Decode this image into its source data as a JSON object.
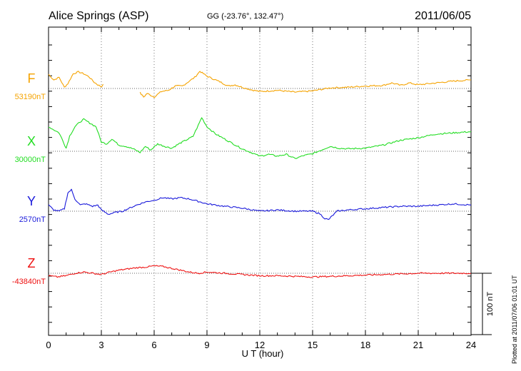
{
  "chart_data": {
    "type": "line",
    "title": "Alice Springs (ASP)",
    "coordinates": "GG (-23.76°, 132.47°)",
    "date": "2011/06/05",
    "xlabel": "U T (hour)",
    "xlim": [
      0,
      24
    ],
    "xticks": [
      0,
      3,
      6,
      9,
      12,
      15,
      18,
      21,
      24
    ],
    "scale_bar_nT": 100,
    "scale_bar_label": "100 nT",
    "plotted_note": "Plotted at 2011/07/06 01:01  UT",
    "series": [
      {
        "name": "F",
        "baseline_label": "53190nT",
        "color": "#f5a300",
        "segments": [
          {
            "x": [
              0,
              0.3,
              0.6,
              0.9,
              1.1,
              1.4,
              1.7,
              2.0,
              2.3,
              2.6,
              2.8,
              3.0,
              3.1
            ],
            "y": [
              23,
              14,
              18,
              2,
              8,
              24,
              27,
              24,
              19,
              10,
              6,
              3,
              7
            ]
          },
          {
            "x": [
              5.2,
              5.4,
              5.6,
              6.0,
              6.4,
              6.8,
              7.2,
              7.6,
              8.0,
              8.3,
              8.6,
              8.8,
              9.0,
              9.4,
              9.8,
              10.2,
              10.6,
              11.0,
              11.5,
              12.0,
              13.0,
              14.0,
              15.0,
              16.0,
              17.0,
              18.0,
              19.0,
              19.5,
              20.0,
              20.5,
              21.0,
              22.0,
              23.0,
              24.0
            ],
            "y": [
              -7,
              -14,
              -8,
              -14,
              -5,
              -3,
              4,
              4,
              12,
              18,
              28,
              24,
              20,
              15,
              10,
              4,
              6,
              2,
              -2,
              -5,
              -3,
              -6,
              -4,
              1,
              2,
              4,
              5,
              9,
              5,
              9,
              6,
              9,
              12,
              14
            ]
          }
        ]
      },
      {
        "name": "X",
        "baseline_label": "30000nT",
        "color": "#22dd22",
        "segments": [
          {
            "x": [
              0,
              0.3,
              0.6,
              0.8,
              1.0,
              1.2,
              1.5,
              1.8,
              2.0,
              2.4,
              2.7,
              3.0,
              3.3,
              3.6,
              4.0,
              4.4,
              4.8,
              5.2,
              5.5,
              5.8,
              6.2,
              6.6,
              7.0,
              7.4,
              7.8,
              8.2,
              8.5,
              8.7,
              9.0,
              9.5,
              10.0,
              10.5,
              11.0,
              11.5,
              12.0,
              12.5,
              13.0,
              13.5,
              14.0,
              14.5,
              15.0,
              15.5,
              16.0,
              16.5,
              17.0,
              18.0,
              19.0,
              20.0,
              21.0,
              22.0,
              23.0,
              24.0
            ],
            "y": [
              40,
              35,
              30,
              18,
              5,
              25,
              40,
              48,
              52,
              45,
              40,
              15,
              12,
              20,
              10,
              8,
              4,
              -2,
              8,
              2,
              12,
              8,
              5,
              12,
              18,
              24,
              42,
              55,
              40,
              28,
              20,
              12,
              4,
              -2,
              -8,
              -5,
              -8,
              -5,
              -12,
              -7,
              -4,
              2,
              8,
              5,
              4,
              5,
              10,
              18,
              22,
              28,
              30,
              32
            ]
          }
        ]
      },
      {
        "name": "Y",
        "baseline_label": "2570nT",
        "color": "#1a1adb",
        "segments": [
          {
            "x": [
              0,
              0.3,
              0.6,
              0.9,
              1.1,
              1.3,
              1.5,
              1.8,
              2.1,
              2.5,
              2.8,
              3.0,
              3.4,
              3.8,
              4.2,
              4.6,
              5.0,
              5.5,
              6.0,
              6.5,
              7.0,
              7.5,
              8.0,
              8.5,
              9.0,
              10.0,
              11.0,
              12.0,
              13.0,
              14.0,
              15.0,
              15.4,
              15.7,
              15.9,
              16.1,
              16.4,
              17.0,
              18.0,
              19.0,
              20.0,
              21.0,
              22.0,
              23.0,
              24.0
            ],
            "y": [
              10,
              2,
              0,
              4,
              30,
              35,
              20,
              10,
              12,
              8,
              10,
              2,
              -5,
              -2,
              0,
              5,
              10,
              15,
              18,
              22,
              20,
              22,
              20,
              16,
              12,
              8,
              5,
              0,
              2,
              0,
              0,
              -4,
              -12,
              -14,
              -8,
              0,
              2,
              4,
              6,
              8,
              8,
              10,
              12,
              10
            ]
          }
        ]
      },
      {
        "name": "Z",
        "baseline_label": "-43840nT",
        "color": "#ee1111",
        "segments": [
          {
            "x": [
              0,
              0.5,
              1.0,
              1.5,
              2.0,
              2.5,
              3.0,
              3.5,
              4.0,
              4.5,
              5.0,
              5.5,
              6.0,
              6.5,
              7.0,
              7.5,
              8.0,
              8.5,
              9.0,
              10.0,
              11.0,
              12.0,
              13.0,
              14.0,
              15.0,
              16.0,
              17.0,
              18.0,
              19.0,
              20.0,
              21.0,
              22.0,
              23.0,
              24.0
            ],
            "y": [
              -4,
              -6,
              -4,
              0,
              2,
              0,
              -2,
              2,
              5,
              7,
              9,
              10,
              12,
              11,
              8,
              5,
              2,
              0,
              2,
              0,
              -2,
              -4,
              -4,
              -5,
              -6,
              -5,
              -4,
              -3,
              -2,
              -1,
              0,
              0,
              0,
              0
            ]
          }
        ]
      }
    ]
  }
}
